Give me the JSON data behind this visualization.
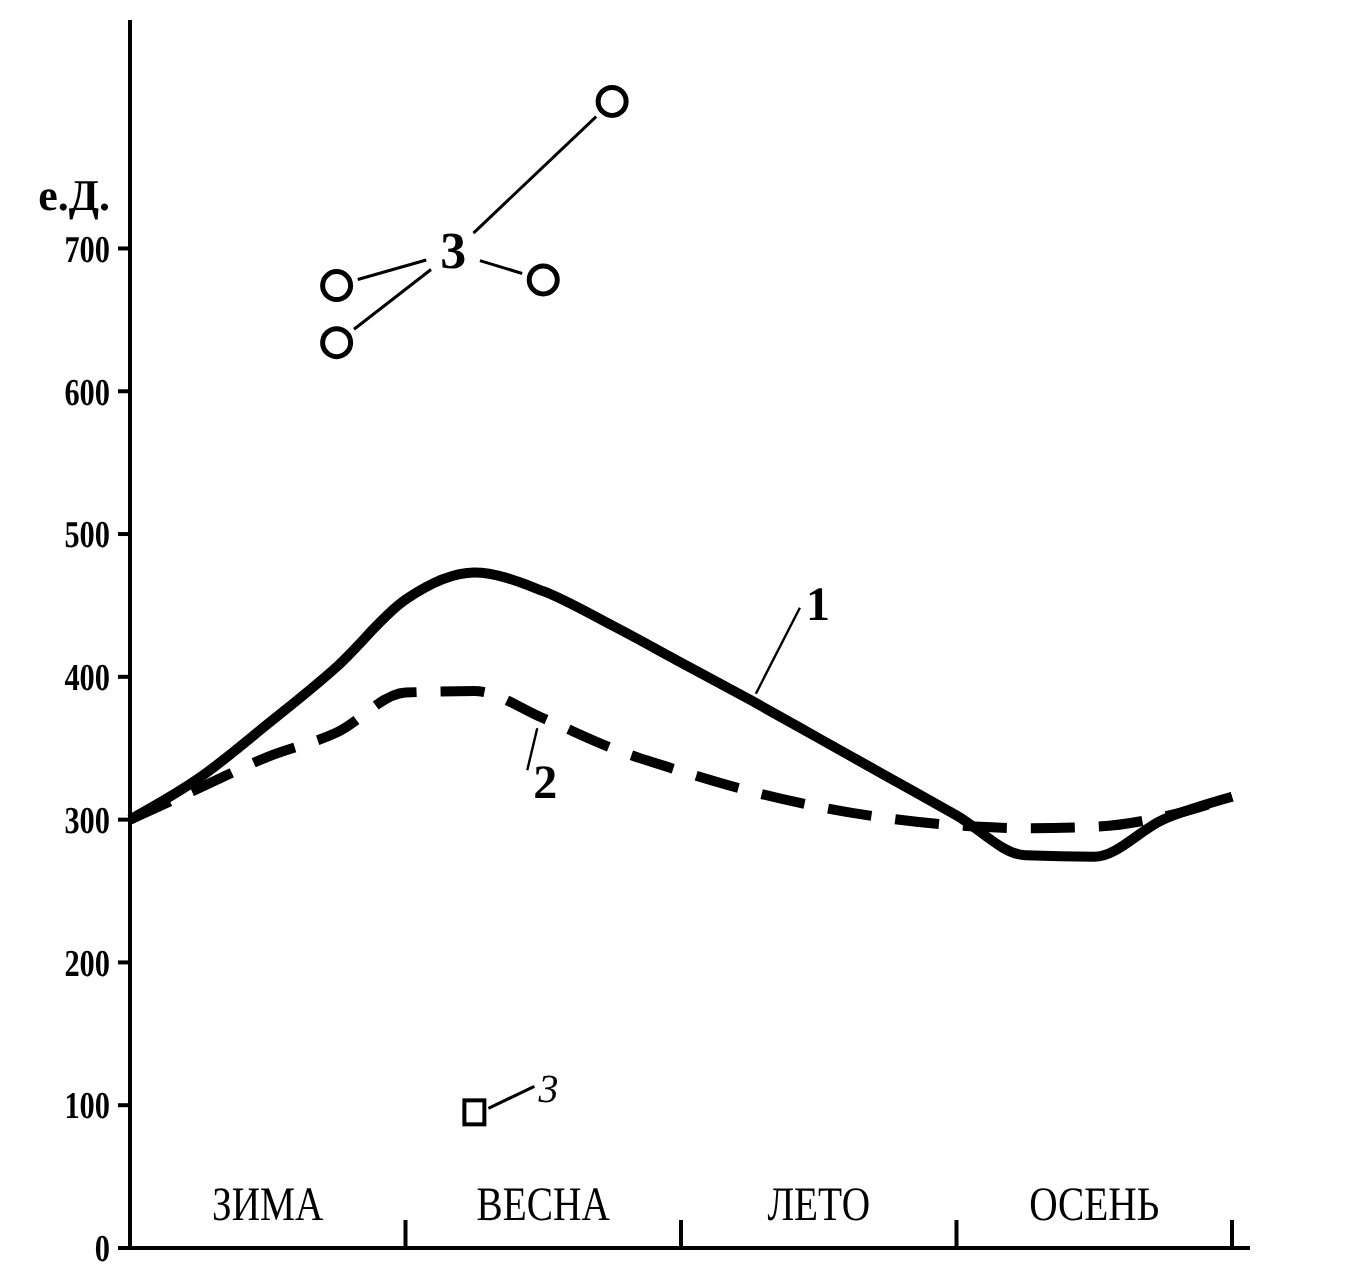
{
  "chart_data": {
    "type": "line",
    "ylabel": "е.Д.",
    "categories": [
      null,
      null,
      "ЗИМА",
      null,
      null,
      null,
      "ВЕСНА",
      null,
      null,
      null,
      "ЛЕТО",
      null,
      null,
      null,
      "ОСЕНЬ",
      null,
      null
    ],
    "ylim": [
      0,
      860
    ],
    "yticks": [
      0,
      100,
      200,
      300,
      400,
      500,
      600,
      700
    ],
    "grid": false,
    "series": [
      {
        "name": "1",
        "color": "#000000",
        "line_style": "solid",
        "values": [
          300,
          329,
          367,
          407,
          454,
          473,
          460,
          436,
          410,
          384,
          357,
          330,
          303,
          275,
          274,
          300,
          316
        ]
      },
      {
        "name": "2",
        "color": "#000000",
        "line_style": "dashed",
        "values": [
          300,
          322,
          344,
          361,
          389,
          390,
          371,
          350,
          334,
          320,
          309,
          301,
          296,
          294,
          295,
          302,
          316
        ]
      },
      {
        "name": "3",
        "type": "scatter",
        "color": "#000000",
        "marker": "circle",
        "values": [
          null,
          null,
          null,
          674,
          null,
          null,
          678,
          803,
          null,
          null,
          null,
          null,
          null,
          null,
          null,
          null,
          null
        ]
      },
      {
        "type": "scatter",
        "color": "#000000",
        "marker": "circle",
        "values": [
          null,
          null,
          null,
          634,
          null,
          null,
          null,
          null,
          null,
          null,
          null,
          null,
          null,
          null,
          null,
          null,
          null
        ]
      },
      {
        "name": "3",
        "type": "scatter",
        "color": "#000000",
        "marker": "square",
        "values": [
          null,
          null,
          null,
          null,
          null,
          95,
          null,
          null,
          null,
          null,
          null,
          null,
          null,
          null,
          null,
          null,
          null
        ]
      }
    ]
  }
}
